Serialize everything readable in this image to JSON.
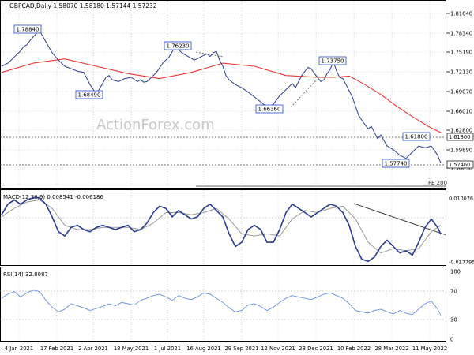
{
  "header": {
    "symbol_ohlc": "GBPCAD,Daily  1.58070 1.58180 1.57144 1.57232"
  },
  "watermark": "ActionForex.com",
  "colors": {
    "price": "#2a3b8f",
    "ma": "#e53935",
    "signal": "#9a9a9a",
    "grid": "#bdbdbd",
    "box": "#3a5bd0"
  },
  "chart_data": [
    {
      "type": "line",
      "title": "",
      "ylim": [
        1.55,
        1.82
      ],
      "y_ticks": [
        "1.81640",
        "1.78340",
        "1.75190",
        "1.72130",
        "1.69070",
        "1.66010",
        "1.62800",
        "1.59890",
        "1.56830"
      ],
      "ref_labels": [
        "1.61800",
        "1.57460"
      ],
      "fe_label": "FE 200",
      "annotations": [
        "1.78840",
        "1.68490",
        "1.76230",
        "1.66360",
        "1.73750",
        "1.61800",
        "1.57740"
      ],
      "series": [
        {
          "name": "",
          "x": [
            0,
            8,
            16,
            24,
            28,
            32,
            36,
            40,
            48,
            56,
            64,
            72,
            80,
            88,
            96,
            104,
            112,
            120,
            128,
            132,
            136,
            140,
            148,
            156,
            164,
            172,
            176,
            180,
            184,
            188,
            196,
            204,
            212,
            220,
            228,
            236,
            244,
            252,
            256,
            260,
            264,
            268,
            272,
            276,
            280,
            284,
            288,
            296,
            304,
            312,
            320,
            328,
            336,
            344,
            352,
            360,
            368,
            372,
            376,
            380,
            384,
            388,
            392,
            396,
            400,
            404,
            408,
            412,
            416,
            420,
            424,
            428,
            432,
            436,
            440,
            444,
            448,
            452,
            456,
            460,
            464,
            468,
            472,
            476,
            480,
            488,
            496,
            504,
            512,
            520,
            528,
            536,
            544,
            552,
            556
          ],
          "values": [
            1.73,
            1.735,
            1.745,
            1.755,
            1.762,
            1.765,
            1.772,
            1.778,
            1.7884,
            1.77,
            1.752,
            1.74,
            1.73,
            1.726,
            1.722,
            1.72,
            1.7,
            1.6849,
            1.702,
            1.712,
            1.715,
            1.708,
            1.705,
            1.71,
            1.712,
            1.705,
            1.708,
            1.704,
            1.705,
            1.71,
            1.72,
            1.735,
            1.745,
            1.7623,
            1.752,
            1.746,
            1.74,
            1.745,
            1.748,
            1.75,
            1.746,
            1.752,
            1.754,
            1.74,
            1.73,
            1.715,
            1.708,
            1.7,
            1.695,
            1.688,
            1.68,
            1.672,
            1.6636,
            1.668,
            1.682,
            1.692,
            1.702,
            1.695,
            1.705,
            1.715,
            1.722,
            1.728,
            1.726,
            1.718,
            1.712,
            1.705,
            1.708,
            1.718,
            1.725,
            1.7375,
            1.722,
            1.712,
            1.71,
            1.7,
            1.69,
            1.68,
            1.665,
            1.65,
            1.642,
            1.635,
            1.628,
            1.632,
            1.622,
            1.612,
            1.618,
            1.6,
            1.594,
            1.585,
            1.58,
            1.59,
            1.6,
            1.597,
            1.6,
            1.585,
            1.5723
          ]
        },
        {
          "name": "",
          "x": [
            0,
            40,
            80,
            120,
            160,
            200,
            240,
            280,
            320,
            360,
            400,
            420,
            440,
            460,
            480,
            500,
            520,
            540,
            556
          ],
          "values": [
            1.72,
            1.735,
            1.742,
            1.73,
            1.718,
            1.71,
            1.72,
            1.735,
            1.73,
            1.715,
            1.712,
            1.712,
            1.714,
            1.7,
            1.684,
            1.665,
            1.648,
            1.632,
            1.622
          ]
        }
      ]
    },
    {
      "type": "line",
      "title": "MACD(12,26,9) 0.008541 -0.006186",
      "y_ticks": [
        "0.010076",
        "-0.017795"
      ],
      "ylim": [
        -0.02,
        0.012
      ],
      "series": [
        {
          "name": "",
          "x": [
            0,
            8,
            16,
            24,
            32,
            40,
            48,
            56,
            64,
            72,
            80,
            88,
            96,
            104,
            112,
            120,
            128,
            136,
            144,
            152,
            160,
            168,
            176,
            184,
            192,
            200,
            208,
            216,
            224,
            232,
            240,
            248,
            256,
            264,
            272,
            280,
            288,
            296,
            304,
            312,
            320,
            328,
            336,
            344,
            352,
            360,
            368,
            376,
            384,
            392,
            400,
            408,
            416,
            424,
            432,
            440,
            448,
            456,
            464,
            472,
            480,
            488,
            496,
            504,
            512,
            520,
            528,
            536,
            544,
            552,
            556
          ],
          "values": [
            0.003,
            0.008,
            0.01,
            0.008,
            0.01,
            0.011,
            0.011,
            0.008,
            0.002,
            -0.005,
            -0.007,
            -0.003,
            -0.002,
            -0.004,
            -0.005,
            -0.003,
            -0.002,
            -0.003,
            -0.004,
            -0.003,
            -0.002,
            -0.005,
            -0.004,
            -0.001,
            0.004,
            0.007,
            0.006,
            0.002,
            0.005,
            0.003,
            0.001,
            0.002,
            0.006,
            0.008,
            0.005,
            0.002,
            -0.006,
            -0.012,
            -0.01,
            -0.004,
            -0.002,
            -0.004,
            -0.01,
            -0.01,
            -0.004,
            0.004,
            0.008,
            0.006,
            0.004,
            0.002,
            0.004,
            0.006,
            0.008,
            0.007,
            0.004,
            -0.002,
            -0.012,
            -0.018,
            -0.019,
            -0.017,
            -0.012,
            -0.009,
            -0.012,
            -0.015,
            -0.014,
            -0.016,
            -0.01,
            -0.003,
            0.001,
            -0.003,
            -0.0062
          ]
        },
        {
          "name": "",
          "x": [
            0,
            16,
            32,
            48,
            64,
            80,
            96,
            112,
            128,
            144,
            160,
            176,
            192,
            208,
            224,
            240,
            256,
            272,
            288,
            304,
            320,
            336,
            352,
            368,
            384,
            400,
            416,
            432,
            448,
            464,
            480,
            496,
            512,
            528,
            544,
            556
          ],
          "values": [
            0.002,
            0.006,
            0.009,
            0.01,
            0.006,
            -0.002,
            -0.004,
            -0.004,
            -0.003,
            -0.003,
            -0.003,
            -0.004,
            -0.001,
            0.004,
            0.004,
            0.003,
            0.004,
            0.006,
            0.001,
            -0.006,
            -0.007,
            -0.006,
            -0.007,
            0.001,
            0.005,
            0.004,
            0.006,
            0.007,
            0.001,
            -0.01,
            -0.015,
            -0.013,
            -0.014,
            -0.013,
            -0.005,
            -0.002
          ]
        }
      ]
    },
    {
      "type": "line",
      "title": "RSI(14) 32.8087",
      "y_ticks": [
        "100",
        "70",
        "30",
        "0"
      ],
      "ylim": [
        0,
        100
      ],
      "series": [
        {
          "name": "",
          "x": [
            0,
            8,
            16,
            24,
            32,
            40,
            48,
            56,
            64,
            72,
            80,
            88,
            96,
            104,
            112,
            120,
            128,
            136,
            144,
            152,
            160,
            168,
            176,
            184,
            192,
            200,
            208,
            216,
            224,
            232,
            240,
            248,
            256,
            264,
            272,
            280,
            288,
            296,
            304,
            312,
            320,
            328,
            336,
            344,
            352,
            360,
            368,
            376,
            384,
            392,
            400,
            408,
            416,
            424,
            432,
            440,
            448,
            456,
            464,
            472,
            480,
            488,
            496,
            504,
            512,
            520,
            528,
            536,
            544,
            552,
            556
          ],
          "values": [
            58,
            64,
            68,
            60,
            66,
            70,
            68,
            55,
            45,
            38,
            42,
            50,
            47,
            44,
            40,
            43,
            46,
            50,
            47,
            52,
            50,
            48,
            55,
            58,
            62,
            64,
            60,
            55,
            62,
            58,
            56,
            60,
            66,
            64,
            58,
            52,
            44,
            38,
            40,
            48,
            50,
            46,
            40,
            45,
            52,
            58,
            62,
            60,
            58,
            56,
            60,
            64,
            66,
            62,
            58,
            50,
            40,
            38,
            36,
            40,
            42,
            38,
            35,
            40,
            36,
            34,
            42,
            50,
            54,
            42,
            33
          ]
        }
      ]
    }
  ],
  "x_axis": {
    "labels": [
      "4 Jan 2021",
      "17 Feb 2021",
      "2 Apr 2021",
      "18 May 2021",
      "1 Jul 2021",
      "16 Aug 2021",
      "29 Sep 2021",
      "12 Nov 2021",
      "28 Dec 2021",
      "10 Feb 2022",
      "28 Mar 2022",
      "11 May 2022"
    ]
  }
}
